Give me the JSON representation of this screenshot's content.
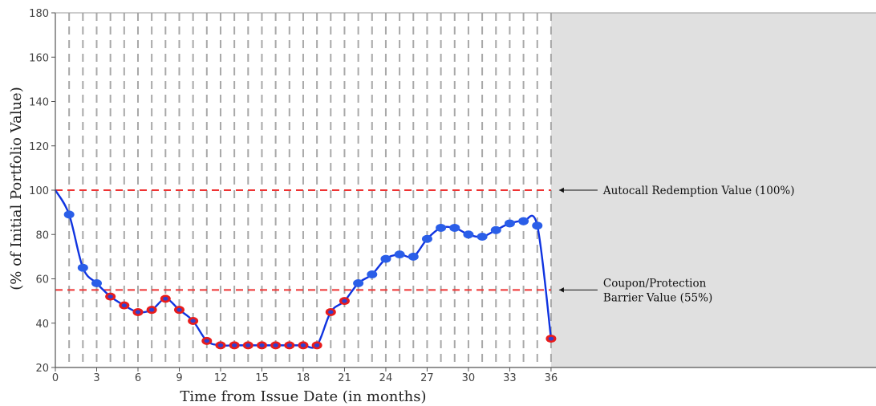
{
  "chart_data": {
    "type": "line",
    "xlabel": "Time from Issue Date (in months)",
    "ylabel": "(% of Initial Portfolio Value)",
    "xlim": [
      0,
      36
    ],
    "x_view_max": 59.6,
    "ylim": [
      20,
      180
    ],
    "x_ticks": [
      0,
      3,
      6,
      9,
      12,
      15,
      18,
      21,
      24,
      27,
      30,
      33,
      36
    ],
    "y_ticks": [
      20,
      40,
      60,
      80,
      100,
      120,
      140,
      160,
      180
    ],
    "observation_months": [
      1,
      2,
      3,
      4,
      5,
      6,
      7,
      8,
      9,
      10,
      11,
      12,
      13,
      14,
      15,
      16,
      17,
      18,
      19,
      20,
      21,
      22,
      23,
      24,
      25,
      26,
      27,
      28,
      29,
      30,
      31,
      32,
      33,
      34,
      35,
      36
    ],
    "grid": "vertical dashed at monthly observation dates",
    "shaded_region_after_x": 36,
    "colors": {
      "line": "#1034e0",
      "point_above_barrier": "#2a5ee8",
      "point_below_barrier": "#e81c1c",
      "reference_line": "#ee3333",
      "grid": "#a8a8a8",
      "shade": "#e0e0e0"
    },
    "reference_lines": [
      {
        "y": 100,
        "label": "Autocall Redemption Value (100%)"
      },
      {
        "y": 55,
        "label_lines": [
          "Coupon/Protection",
          "Barrier Value (55%)"
        ]
      }
    ],
    "series": [
      {
        "x": [
          0,
          1,
          2,
          3,
          4,
          5,
          6,
          7,
          8,
          9,
          10,
          11,
          12,
          13,
          14,
          15,
          16,
          17,
          18,
          19,
          20,
          21,
          22,
          23,
          24,
          25,
          26,
          27,
          28,
          29,
          30,
          31,
          32,
          33,
          34,
          35,
          36
        ],
        "y": [
          100,
          89,
          65,
          58,
          52,
          48,
          45,
          46,
          51,
          46,
          41,
          32,
          30,
          30,
          30,
          30,
          30,
          30,
          30,
          30,
          45,
          50,
          58,
          62,
          69,
          71,
          70,
          78,
          83,
          83,
          80,
          79,
          82,
          85,
          86,
          84,
          33
        ]
      }
    ]
  }
}
